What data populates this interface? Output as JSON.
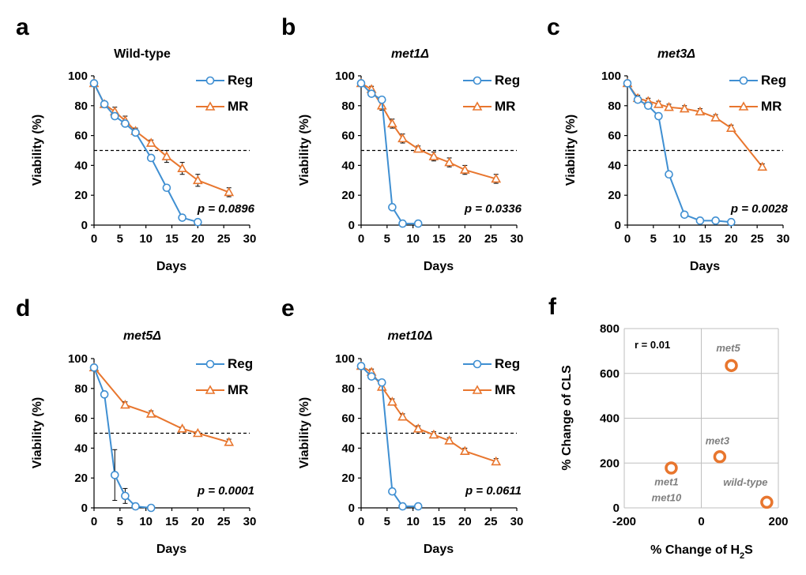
{
  "colors": {
    "reg": "#3f8fd2",
    "mr": "#e8762e",
    "grid": "#bfbfbf"
  },
  "chart_data": [
    {
      "type": "line",
      "letter": "a",
      "title": "Wild-type",
      "title_italic": false,
      "xlabel": "Days",
      "ylabel": "Viability (%)",
      "xlim": [
        0,
        30
      ],
      "ylim": [
        0,
        100
      ],
      "xticks": [
        "0",
        "5",
        "10",
        "15",
        "20",
        "25",
        "30"
      ],
      "yticks": [
        "0",
        "20",
        "40",
        "60",
        "80",
        "100"
      ],
      "threshold": 50,
      "pvalue": "p = 0.0896",
      "legend": [
        "Reg",
        "MR"
      ],
      "series": [
        {
          "name": "Reg",
          "marker": "circle",
          "x": [
            0,
            2,
            4,
            6,
            8,
            11,
            14,
            17,
            20
          ],
          "y": [
            95,
            81,
            73,
            68,
            62,
            45,
            25,
            5,
            2
          ],
          "err": [
            2,
            2,
            2,
            2,
            2,
            2,
            2,
            2,
            1
          ]
        },
        {
          "name": "MR",
          "marker": "triangle",
          "x": [
            0,
            2,
            4,
            6,
            8,
            11,
            14,
            17,
            20,
            26
          ],
          "y": [
            95,
            81,
            76,
            70,
            63,
            55,
            46,
            38,
            30,
            22
          ],
          "err": [
            2,
            2,
            3,
            3,
            2,
            2,
            4,
            4,
            4,
            3
          ]
        }
      ]
    },
    {
      "type": "line",
      "letter": "b",
      "title": "met1Δ",
      "title_italic": true,
      "xlabel": "Days",
      "ylabel": "Viability (%)",
      "xlim": [
        0,
        30
      ],
      "ylim": [
        0,
        100
      ],
      "xticks": [
        "0",
        "5",
        "10",
        "15",
        "20",
        "25",
        "30"
      ],
      "yticks": [
        "0",
        "20",
        "40",
        "60",
        "80",
        "100"
      ],
      "threshold": 50,
      "pvalue": "p = 0.0336",
      "legend": [
        "Reg",
        "MR"
      ],
      "series": [
        {
          "name": "Reg",
          "marker": "circle",
          "x": [
            0,
            2,
            4,
            6,
            8,
            11
          ],
          "y": [
            95,
            88,
            84,
            12,
            1,
            1
          ],
          "err": [
            2,
            2,
            2,
            1,
            1,
            1
          ]
        },
        {
          "name": "MR",
          "marker": "triangle",
          "x": [
            0,
            2,
            4,
            6,
            8,
            11,
            14,
            17,
            20,
            26
          ],
          "y": [
            95,
            91,
            80,
            68,
            58,
            51,
            46,
            42,
            37,
            31
          ],
          "err": [
            2,
            2,
            3,
            3,
            3,
            2,
            3,
            3,
            3,
            3
          ]
        }
      ]
    },
    {
      "type": "line",
      "letter": "c",
      "title": "met3Δ",
      "title_italic": true,
      "xlabel": "Days",
      "ylabel": "Viability (%)",
      "xlim": [
        0,
        30
      ],
      "ylim": [
        0,
        100
      ],
      "xticks": [
        "0",
        "5",
        "10",
        "15",
        "20",
        "25",
        "30"
      ],
      "yticks": [
        "0",
        "20",
        "40",
        "60",
        "80",
        "100"
      ],
      "threshold": 50,
      "pvalue": "p = 0.0028",
      "legend": [
        "Reg",
        "MR"
      ],
      "series": [
        {
          "name": "Reg",
          "marker": "circle",
          "x": [
            0,
            2,
            4,
            6,
            8,
            11,
            14,
            17,
            20
          ],
          "y": [
            95,
            84,
            80,
            73,
            34,
            7,
            3,
            3,
            2
          ],
          "err": [
            2,
            2,
            2,
            2,
            2,
            1,
            1,
            1,
            1
          ]
        },
        {
          "name": "MR",
          "marker": "triangle",
          "x": [
            0,
            2,
            4,
            6,
            8,
            11,
            14,
            17,
            20,
            26
          ],
          "y": [
            95,
            85,
            83,
            81,
            79,
            78,
            76,
            72,
            65,
            39
          ],
          "err": [
            2,
            2,
            2,
            2,
            2,
            2,
            2,
            2,
            2,
            2
          ]
        }
      ]
    },
    {
      "type": "line",
      "letter": "d",
      "title": "met5Δ",
      "title_italic": true,
      "xlabel": "Days",
      "ylabel": "Viability (%)",
      "xlim": [
        0,
        30
      ],
      "ylim": [
        0,
        100
      ],
      "xticks": [
        "0",
        "5",
        "10",
        "15",
        "20",
        "25",
        "30"
      ],
      "yticks": [
        "0",
        "20",
        "40",
        "60",
        "80",
        "100"
      ],
      "threshold": 50,
      "pvalue": "p = 0.0001",
      "legend": [
        "Reg",
        "MR"
      ],
      "series": [
        {
          "name": "Reg",
          "marker": "circle",
          "x": [
            0,
            2,
            4,
            6,
            8,
            11
          ],
          "y": [
            94,
            76,
            22,
            8,
            1,
            0
          ],
          "err": [
            2,
            2,
            17,
            5,
            1,
            1
          ]
        },
        {
          "name": "MR",
          "marker": "triangle",
          "x": [
            0,
            6,
            11,
            17,
            20,
            26
          ],
          "y": [
            94,
            69,
            63,
            53,
            50,
            44
          ],
          "err": [
            2,
            2,
            2,
            1,
            1,
            2
          ]
        }
      ]
    },
    {
      "type": "line",
      "letter": "e",
      "title": "met10Δ",
      "title_italic": true,
      "xlabel": "Days",
      "ylabel": "Viability (%)",
      "xlim": [
        0,
        30
      ],
      "ylim": [
        0,
        100
      ],
      "xticks": [
        "0",
        "5",
        "10",
        "15",
        "20",
        "25",
        "30"
      ],
      "yticks": [
        "0",
        "20",
        "40",
        "60",
        "80",
        "100"
      ],
      "threshold": 50,
      "pvalue": "p = 0.0611",
      "legend": [
        "Reg",
        "MR"
      ],
      "series": [
        {
          "name": "Reg",
          "marker": "circle",
          "x": [
            0,
            2,
            4,
            6,
            8,
            11
          ],
          "y": [
            95,
            88,
            84,
            11,
            1,
            1
          ],
          "err": [
            2,
            2,
            2,
            1,
            1,
            1
          ]
        },
        {
          "name": "MR",
          "marker": "triangle",
          "x": [
            0,
            2,
            4,
            6,
            8,
            11,
            14,
            17,
            20,
            26
          ],
          "y": [
            95,
            91,
            81,
            71,
            61,
            53,
            49,
            45,
            38,
            31
          ],
          "err": [
            2,
            2,
            2,
            2,
            2,
            2,
            2,
            2,
            2,
            2
          ]
        }
      ]
    },
    {
      "type": "scatter",
      "letter": "f",
      "xlabel_parts": [
        "% Change of H",
        "2",
        "S"
      ],
      "ylabel": "% Change of CLS",
      "xlim": [
        -200,
        200
      ],
      "ylim": [
        0,
        800
      ],
      "xticks": [
        "-200",
        "0",
        "200"
      ],
      "yticks": [
        "0",
        "200",
        "400",
        "600",
        "800"
      ],
      "r_label": "r = 0.01",
      "points": [
        {
          "label": "met5",
          "x": 78,
          "y": 635
        },
        {
          "label": "met3",
          "x": 48,
          "y": 228
        },
        {
          "label": "met1",
          "x": -78,
          "y": 178
        },
        {
          "label": "met10",
          "x": -78,
          "y": 178
        },
        {
          "label": "wild-type",
          "x": 170,
          "y": 25
        }
      ]
    }
  ]
}
